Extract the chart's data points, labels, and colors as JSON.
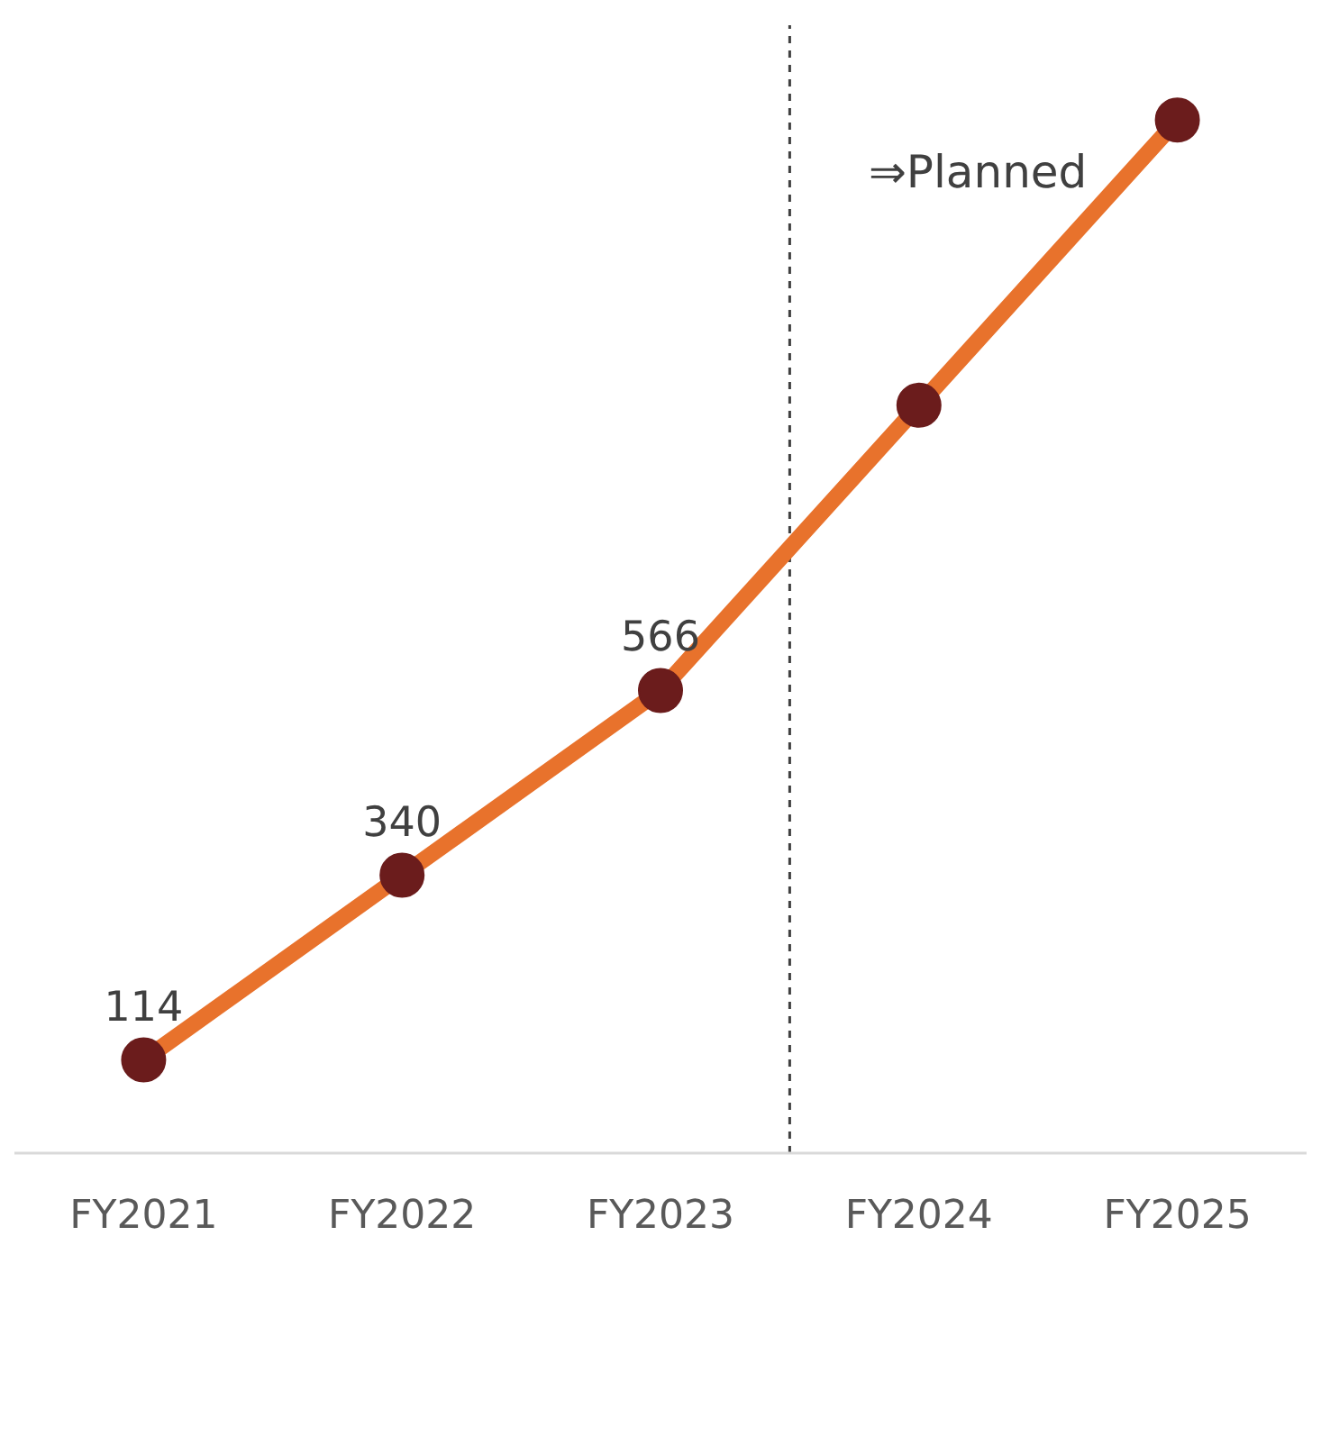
{
  "chart_data": {
    "type": "line",
    "categories": [
      "FY2021",
      "FY2022",
      "FY2023",
      "FY2024",
      "FY2025"
    ],
    "series": [
      {
        "color": "#e8722c",
        "values": [
          114,
          340,
          566,
          915,
          1264
        ],
        "value_labels": [
          "114",
          "340",
          "566",
          null,
          null
        ]
      }
    ],
    "ylim": [
      0,
      1380
    ],
    "tick_labels": "x",
    "marker": "circle",
    "line_style": "solid",
    "grid": false,
    "legend": false,
    "annotations": [
      "⇒Planned"
    ]
  }
}
